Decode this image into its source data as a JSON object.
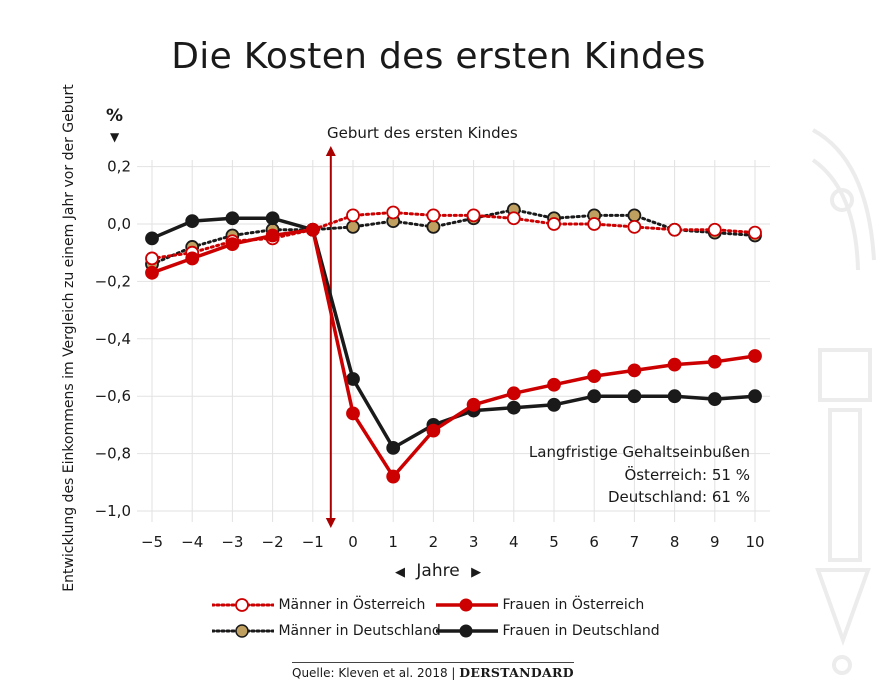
{
  "chart_data": {
    "type": "line",
    "title": "Die Kosten des ersten Kindes",
    "ylabel": "Entwicklung des Einkommens im Vergleich zu einem  Jahr vor der Geburt",
    "yunit": "%",
    "xlabel": "Jahre",
    "x": [
      -5,
      -4,
      -3,
      -2,
      -1,
      0,
      1,
      2,
      3,
      4,
      5,
      6,
      7,
      8,
      9,
      10
    ],
    "xticks": [
      "−5",
      "−4",
      "−3",
      "−2",
      "−1",
      "0",
      "1",
      "2",
      "3",
      "4",
      "5",
      "6",
      "7",
      "8",
      "9",
      "10"
    ],
    "yticks": [
      "0,2",
      "0,0",
      "−0,2",
      "−0,4",
      "−0,6",
      "−0,8",
      "−1,0"
    ],
    "ytick_values": [
      0.2,
      0.0,
      -0.2,
      -0.4,
      -0.6,
      -0.8,
      -1.0
    ],
    "ylim": [
      -1.05,
      0.23
    ],
    "xlim": [
      -5.3,
      10.3
    ],
    "grid": true,
    "legend_position": "bottom",
    "series": [
      {
        "name": "Männer in Deutschland",
        "style": "dotted",
        "line_color": "#1a1a1a",
        "marker_fill": "#c0a060",
        "marker_stroke": "#1a1a1a",
        "values": [
          -0.14,
          -0.08,
          -0.04,
          -0.02,
          -0.02,
          -0.01,
          0.01,
          -0.01,
          0.02,
          0.05,
          0.02,
          0.03,
          0.03,
          -0.02,
          -0.03,
          -0.04
        ]
      },
      {
        "name": "Männer in Österreich",
        "style": "dotted",
        "line_color": "#cc0000",
        "marker_fill": "#ffffff",
        "marker_stroke": "#cc0000",
        "values": [
          -0.12,
          -0.1,
          -0.06,
          -0.05,
          -0.02,
          0.03,
          0.04,
          0.03,
          0.03,
          0.02,
          0.0,
          0.0,
          -0.01,
          -0.02,
          -0.02,
          -0.03
        ]
      },
      {
        "name": "Frauen in Deutschland",
        "style": "solid",
        "line_color": "#1a1a1a",
        "marker_fill": "#1a1a1a",
        "marker_stroke": "#1a1a1a",
        "values": [
          -0.05,
          0.01,
          0.02,
          0.02,
          -0.02,
          -0.54,
          -0.78,
          -0.7,
          -0.65,
          -0.64,
          -0.63,
          -0.6,
          -0.6,
          -0.6,
          -0.61,
          -0.6
        ]
      },
      {
        "name": "Frauen in Österreich",
        "style": "solid",
        "line_color": "#cc0000",
        "marker_fill": "#cc0000",
        "marker_stroke": "#cc0000",
        "values": [
          -0.17,
          -0.12,
          -0.07,
          -0.04,
          -0.02,
          -0.66,
          -0.88,
          -0.72,
          -0.63,
          -0.59,
          -0.56,
          -0.53,
          -0.51,
          -0.49,
          -0.48,
          -0.46
        ]
      }
    ],
    "event_line": {
      "x": -1,
      "label": "Geburt des ersten Kindes",
      "color": "#aa0000"
    },
    "annotation": {
      "heading": "Langfristige Gehaltseinbußen",
      "line1": "Österreich: 51 %",
      "line2": "Deutschland: 61 %"
    }
  },
  "legend": [
    {
      "label": "Männer in Österreich",
      "series": 1
    },
    {
      "label": "Frauen in Österreich",
      "series": 3
    },
    {
      "label": "Männer in Deutschland",
      "series": 0
    },
    {
      "label": "Frauen in Deutschland",
      "series": 2
    }
  ],
  "source": {
    "text": "Quelle: Kleven et al. 2018 | ",
    "brand": "DERSTANDARD"
  },
  "xunit_arrows": {
    "left": "◀",
    "right": "▶"
  },
  "yunit_arrow": "▼",
  "watermark_color": "#ededed"
}
